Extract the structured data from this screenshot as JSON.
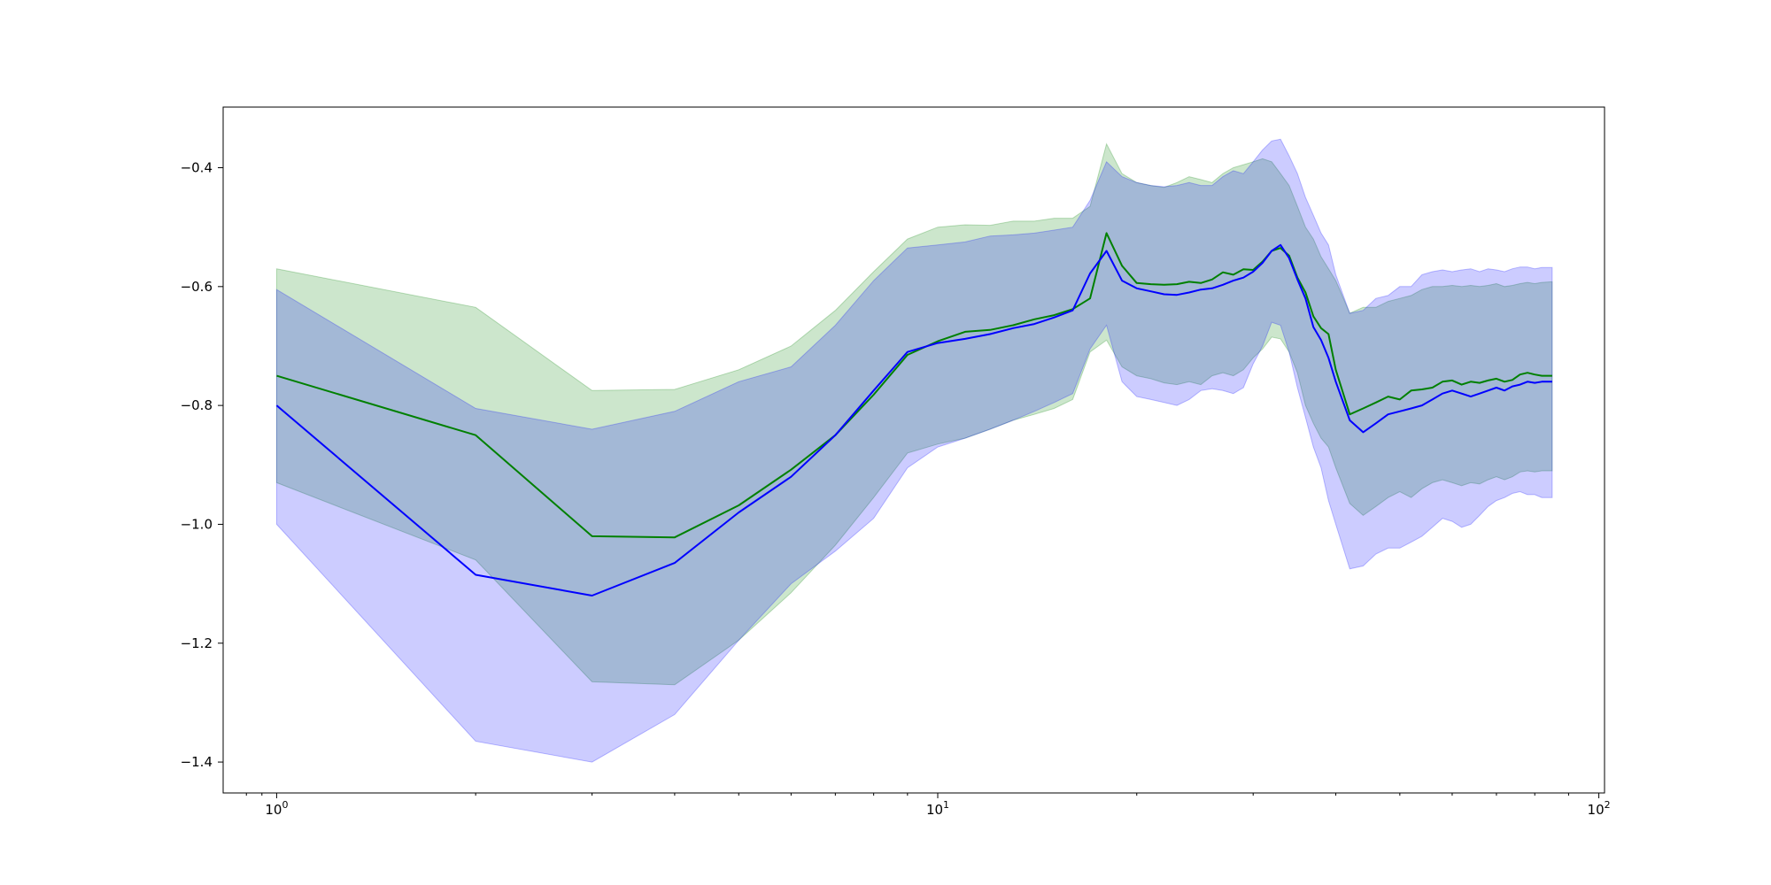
{
  "colors": {
    "series_green": "#008000",
    "series_blue": "#0000ff",
    "band_green": "#008000",
    "band_blue": "#0000ff",
    "axes": "#000000",
    "background": "#ffffff"
  },
  "chart_data": {
    "type": "line",
    "title": "",
    "xlabel": "",
    "ylabel": "",
    "x_scale": "log",
    "xlim": [
      0.83,
      102
    ],
    "ylim": [
      -1.452,
      -0.298
    ],
    "grid": false,
    "legend": "none",
    "x_major_ticks": [
      {
        "value": 1,
        "label_base": "10",
        "label_exp": "0"
      },
      {
        "value": 10,
        "label_base": "10",
        "label_exp": "1"
      },
      {
        "value": 100,
        "label_base": "10",
        "label_exp": "2"
      }
    ],
    "y_ticks": [
      {
        "value": -0.4,
        "label": "−0.4"
      },
      {
        "value": -0.6,
        "label": "−0.6"
      },
      {
        "value": -0.8,
        "label": "−0.8"
      },
      {
        "value": -1.0,
        "label": "−1.0"
      },
      {
        "value": -1.2,
        "label": "−1.2"
      },
      {
        "value": -1.4,
        "label": "−1.4"
      }
    ],
    "series": [
      {
        "color": "#008000",
        "band_color": "#008000",
        "band_opacity": 0.2,
        "x": [
          1,
          2,
          3,
          4,
          5,
          6,
          7,
          8,
          9,
          10,
          11,
          12,
          13,
          14,
          15,
          16,
          17,
          18,
          19,
          20,
          21,
          22,
          23,
          24,
          25,
          26,
          27,
          28,
          29,
          30,
          31,
          32,
          33,
          34,
          35,
          36,
          37,
          38,
          39,
          40,
          42,
          44,
          46,
          48,
          50,
          52,
          54,
          56,
          58,
          60,
          62,
          64,
          66,
          68,
          70,
          72,
          74,
          76,
          78,
          80,
          82,
          85
        ],
        "y": [
          -0.75,
          -0.85,
          -1.02,
          -1.022,
          -0.968,
          -0.908,
          -0.85,
          -0.782,
          -0.715,
          -0.692,
          -0.676,
          -0.673,
          -0.665,
          -0.655,
          -0.648,
          -0.638,
          -0.62,
          -0.51,
          -0.565,
          -0.594,
          -0.596,
          -0.597,
          -0.596,
          -0.592,
          -0.594,
          -0.588,
          -0.576,
          -0.58,
          -0.571,
          -0.572,
          -0.558,
          -0.54,
          -0.535,
          -0.548,
          -0.585,
          -0.61,
          -0.65,
          -0.67,
          -0.68,
          -0.74,
          -0.815,
          -0.805,
          -0.795,
          -0.785,
          -0.79,
          -0.775,
          -0.773,
          -0.77,
          -0.76,
          -0.758,
          -0.765,
          -0.76,
          -0.762,
          -0.758,
          -0.755,
          -0.76,
          -0.757,
          -0.748,
          -0.745,
          -0.748,
          -0.75,
          -0.75
        ],
        "lower": [
          -0.93,
          -1.06,
          -1.265,
          -1.27,
          -1.195,
          -1.115,
          -1.035,
          -0.955,
          -0.88,
          -0.865,
          -0.855,
          -0.84,
          -0.825,
          -0.815,
          -0.805,
          -0.79,
          -0.71,
          -0.69,
          -0.735,
          -0.75,
          -0.755,
          -0.762,
          -0.765,
          -0.76,
          -0.765,
          -0.75,
          -0.745,
          -0.75,
          -0.74,
          -0.72,
          -0.705,
          -0.685,
          -0.688,
          -0.71,
          -0.745,
          -0.8,
          -0.83,
          -0.855,
          -0.87,
          -0.905,
          -0.965,
          -0.985,
          -0.97,
          -0.955,
          -0.945,
          -0.955,
          -0.94,
          -0.93,
          -0.925,
          -0.93,
          -0.935,
          -0.93,
          -0.932,
          -0.925,
          -0.92,
          -0.925,
          -0.92,
          -0.912,
          -0.91,
          -0.912,
          -0.91,
          -0.91
        ],
        "upper": [
          -0.57,
          -0.635,
          -0.775,
          -0.773,
          -0.74,
          -0.7,
          -0.64,
          -0.575,
          -0.52,
          -0.5,
          -0.496,
          -0.497,
          -0.49,
          -0.49,
          -0.485,
          -0.485,
          -0.465,
          -0.36,
          -0.41,
          -0.425,
          -0.43,
          -0.433,
          -0.425,
          -0.415,
          -0.42,
          -0.425,
          -0.41,
          -0.4,
          -0.395,
          -0.39,
          -0.385,
          -0.39,
          -0.41,
          -0.43,
          -0.465,
          -0.5,
          -0.52,
          -0.55,
          -0.57,
          -0.59,
          -0.645,
          -0.635,
          -0.635,
          -0.625,
          -0.62,
          -0.615,
          -0.605,
          -0.6,
          -0.6,
          -0.598,
          -0.6,
          -0.598,
          -0.6,
          -0.598,
          -0.595,
          -0.6,
          -0.598,
          -0.595,
          -0.593,
          -0.595,
          -0.593,
          -0.592
        ]
      },
      {
        "color": "#0000ff",
        "band_color": "#0000ff",
        "band_opacity": 0.2,
        "x": [
          1,
          2,
          3,
          4,
          5,
          6,
          7,
          8,
          9,
          10,
          11,
          12,
          13,
          14,
          15,
          16,
          17,
          18,
          19,
          20,
          21,
          22,
          23,
          24,
          25,
          26,
          27,
          28,
          29,
          30,
          31,
          32,
          33,
          34,
          35,
          36,
          37,
          38,
          39,
          40,
          42,
          44,
          46,
          48,
          50,
          52,
          54,
          56,
          58,
          60,
          62,
          64,
          66,
          68,
          70,
          72,
          74,
          76,
          78,
          80,
          82,
          85
        ],
        "y": [
          -0.8,
          -1.085,
          -1.12,
          -1.065,
          -0.98,
          -0.92,
          -0.85,
          -0.775,
          -0.71,
          -0.695,
          -0.688,
          -0.68,
          -0.67,
          -0.663,
          -0.652,
          -0.64,
          -0.578,
          -0.54,
          -0.59,
          -0.603,
          -0.608,
          -0.613,
          -0.614,
          -0.61,
          -0.605,
          -0.603,
          -0.597,
          -0.59,
          -0.585,
          -0.575,
          -0.56,
          -0.54,
          -0.53,
          -0.552,
          -0.588,
          -0.62,
          -0.668,
          -0.69,
          -0.72,
          -0.76,
          -0.825,
          -0.845,
          -0.83,
          -0.815,
          -0.81,
          -0.805,
          -0.8,
          -0.79,
          -0.78,
          -0.775,
          -0.78,
          -0.785,
          -0.78,
          -0.775,
          -0.77,
          -0.775,
          -0.768,
          -0.765,
          -0.76,
          -0.762,
          -0.76,
          -0.76
        ],
        "lower": [
          -1.0,
          -1.365,
          -1.4,
          -1.32,
          -1.195,
          -1.1,
          -1.045,
          -0.99,
          -0.905,
          -0.87,
          -0.855,
          -0.84,
          -0.825,
          -0.81,
          -0.795,
          -0.78,
          -0.705,
          -0.665,
          -0.76,
          -0.785,
          -0.79,
          -0.795,
          -0.8,
          -0.79,
          -0.775,
          -0.772,
          -0.775,
          -0.78,
          -0.77,
          -0.73,
          -0.7,
          -0.66,
          -0.665,
          -0.71,
          -0.77,
          -0.82,
          -0.87,
          -0.905,
          -0.96,
          -1.0,
          -1.075,
          -1.07,
          -1.05,
          -1.04,
          -1.04,
          -1.03,
          -1.02,
          -1.005,
          -0.99,
          -0.995,
          -1.005,
          -1.0,
          -0.985,
          -0.97,
          -0.96,
          -0.955,
          -0.948,
          -0.945,
          -0.95,
          -0.95,
          -0.955,
          -0.955
        ],
        "upper": [
          -0.605,
          -0.805,
          -0.84,
          -0.81,
          -0.76,
          -0.735,
          -0.665,
          -0.59,
          -0.535,
          -0.53,
          -0.525,
          -0.515,
          -0.513,
          -0.51,
          -0.505,
          -0.5,
          -0.455,
          -0.39,
          -0.415,
          -0.425,
          -0.43,
          -0.432,
          -0.43,
          -0.425,
          -0.43,
          -0.43,
          -0.415,
          -0.405,
          -0.41,
          -0.39,
          -0.37,
          -0.355,
          -0.352,
          -0.38,
          -0.41,
          -0.45,
          -0.48,
          -0.51,
          -0.53,
          -0.58,
          -0.645,
          -0.64,
          -0.62,
          -0.615,
          -0.6,
          -0.6,
          -0.58,
          -0.575,
          -0.572,
          -0.575,
          -0.572,
          -0.57,
          -0.575,
          -0.57,
          -0.572,
          -0.575,
          -0.57,
          -0.567,
          -0.567,
          -0.57,
          -0.568,
          -0.568
        ]
      }
    ]
  }
}
